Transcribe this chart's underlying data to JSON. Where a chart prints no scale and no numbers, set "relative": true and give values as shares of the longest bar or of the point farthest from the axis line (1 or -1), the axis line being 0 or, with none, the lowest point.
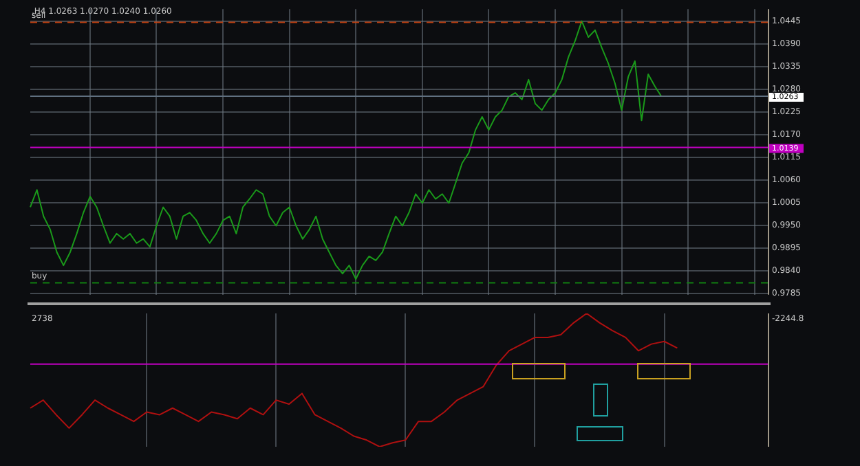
{
  "chart_data": [
    {
      "type": "line",
      "annotations": [
        ",H4 1.0263 1.0270 1.0240 1.0260"
      ],
      "categories": [
        null,
        null,
        null,
        null,
        null,
        null,
        null,
        null,
        null,
        null,
        null,
        null,
        null,
        null,
        null,
        null,
        null,
        null,
        null,
        null,
        null,
        null,
        null,
        null,
        null,
        null,
        null,
        null,
        null,
        null,
        null,
        null,
        null,
        null,
        null,
        null,
        null,
        null,
        null,
        null,
        null,
        null,
        null,
        null,
        null,
        null,
        null,
        null,
        null,
        null,
        null,
        null,
        null,
        null,
        null,
        null,
        null,
        null,
        null,
        null,
        null,
        null,
        null,
        null,
        null,
        null,
        null,
        null,
        null,
        null,
        null,
        null,
        null,
        null,
        null,
        null,
        null,
        null,
        null,
        null,
        null,
        null,
        null,
        null,
        null,
        null,
        null,
        null,
        null,
        null,
        null,
        null,
        null,
        null,
        null,
        null,
        null,
        null,
        null,
        null,
        null,
        null,
        null,
        null,
        null,
        null,
        null,
        null,
        null,
        null,
        null,
        null
      ],
      "series": [
        {
          "color": "#1a9a1a",
          "values": [
            0.9994,
            1.0036,
            0.9972,
            0.994,
            0.9885,
            0.9853,
            0.9885,
            0.993,
            0.9981,
            1.002,
            0.9994,
            0.9949,
            0.9907,
            0.993,
            0.9917,
            0.993,
            0.9907,
            0.9917,
            0.9898,
            0.9949,
            0.9994,
            0.9972,
            0.9917,
            0.9972,
            0.9981,
            0.9962,
            0.993,
            0.9907,
            0.993,
            0.9962,
            0.9972,
            0.993,
            0.9994,
            1.0014,
            1.0036,
            1.0026,
            0.9972,
            0.9949,
            0.9981,
            0.9994,
            0.9949,
            0.9917,
            0.994,
            0.9972,
            0.9917,
            0.9885,
            0.9853,
            0.9833,
            0.9853,
            0.982,
            0.9853,
            0.9875,
            0.9865,
            0.9885,
            0.993,
            0.9972,
            0.9949,
            0.9981,
            1.0026,
            1.0004,
            1.0036,
            1.0014,
            1.0026,
            1.0004,
            1.0052,
            1.0101,
            1.0126,
            1.0181,
            1.0213,
            1.0181,
            1.0213,
            1.0229,
            1.0262,
            1.0271,
            1.0255,
            1.0303,
            1.0245,
            1.0229,
            1.0255,
            1.0271,
            1.0303,
            1.0358,
            1.0397,
            1.0445,
            1.0406,
            1.0423,
            1.0381,
            1.0342,
            1.0294,
            1.0229,
            1.031,
            1.0348,
            1.0204,
            1.0316,
            1.0287,
            1.0262,
            null,
            null,
            null,
            null,
            null,
            null,
            null,
            null,
            null,
            null,
            null,
            null,
            null,
            null,
            null,
            null
          ]
        }
      ],
      "ylim": [
        0.9782,
        1.0474
      ],
      "yticks": [
        0.9785,
        {
          "value": 0.984,
          "label": "0.9840"
        },
        0.9895,
        {
          "value": 0.995,
          "label": "0.9950"
        },
        1.0005,
        {
          "value": 1.006,
          "label": "1.0060"
        },
        1.0115,
        {
          "value": 1.017,
          "label": "1.0170"
        },
        1.0225,
        {
          "value": 1.028,
          "label": "1.0280"
        },
        1.0335,
        {
          "value": 1.039,
          "label": "1.0390"
        },
        1.0445
      ],
      "ref_lines": [
        {
          "axis": "y",
          "value": 1.0442,
          "label": "sell",
          "color": "#c04010",
          "line_style": "dashed"
        },
        {
          "axis": "y",
          "value": 0.9811,
          "label": "buy",
          "color": "#108010",
          "line_style": "dashed"
        },
        {
          "axis": "y",
          "value": 1.0263,
          "label": "1.0263",
          "color": "#607080",
          "line_style": "solid"
        },
        {
          "axis": "y",
          "value": 1.0139,
          "label": "1.0139",
          "color": "#c000c0",
          "line_style": "solid"
        }
      ],
      "grid": true,
      "legend": false,
      "marker": "none",
      "line_style": "solid"
    },
    {
      "type": "line",
      "relative": true,
      "annotations": [
        "2738",
        "-2244.8"
      ],
      "categories": [
        null,
        null,
        null,
        null,
        null,
        null,
        null,
        null,
        null,
        null,
        null,
        null,
        null,
        null,
        null,
        null,
        null,
        null,
        null,
        null,
        null,
        null,
        null,
        null,
        null,
        null,
        null,
        null,
        null,
        null,
        null,
        null,
        null,
        null,
        null,
        null,
        null,
        null,
        null,
        null,
        null,
        null,
        null,
        null,
        null,
        null,
        null,
        null,
        null,
        null,
        null,
        null,
        null,
        null,
        null,
        null,
        null,
        null
      ],
      "series": [
        {
          "color": "#b01010",
          "values": [
            0.29,
            0.35,
            0.24,
            0.14,
            0.24,
            0.35,
            0.29,
            0.24,
            0.19,
            0.26,
            0.24,
            0.29,
            0.24,
            0.19,
            0.26,
            0.24,
            0.21,
            0.29,
            0.24,
            0.35,
            0.32,
            0.4,
            0.24,
            0.19,
            0.14,
            0.08,
            0.05,
            0,
            0.03,
            0.05,
            0.19,
            0.19,
            0.26,
            0.35,
            0.4,
            0.45,
            0.61,
            0.72,
            0.77,
            0.82,
            0.82,
            0.84,
            0.93,
            1,
            0.93,
            0.87,
            0.82,
            0.72,
            0.77,
            0.79,
            0.74,
            null,
            null,
            null,
            null,
            null,
            null,
            null
          ]
        }
      ],
      "ref_lines": [
        {
          "axis": "y",
          "value": 0.62,
          "color": "#c000c0",
          "line_style": "solid"
        }
      ],
      "grid": true,
      "legend": false,
      "marker": "none",
      "line_style": "solid"
    }
  ]
}
